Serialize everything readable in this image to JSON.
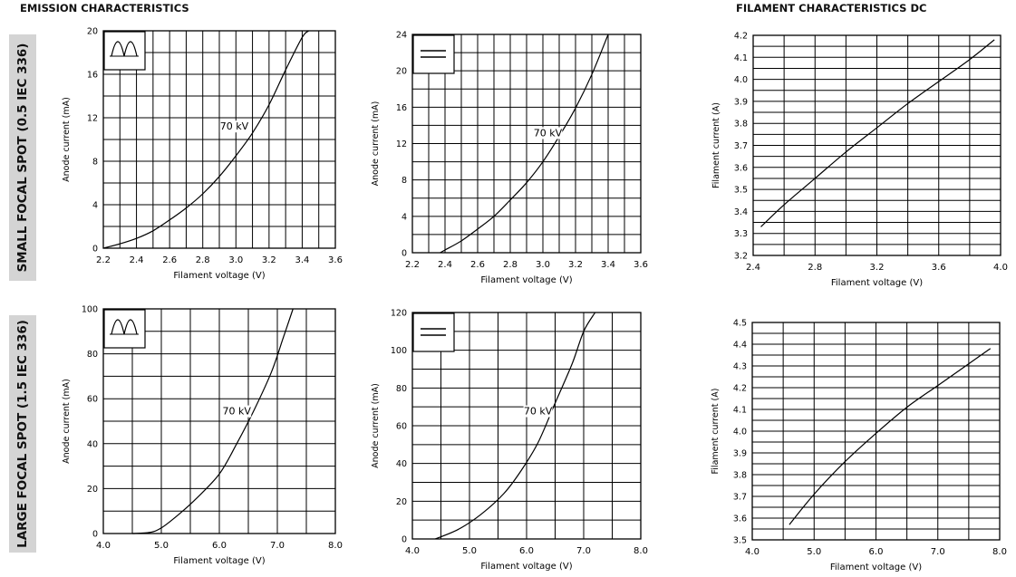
{
  "titles": {
    "emission": "EMISSION CHARACTERISTICS",
    "filament": "FILAMENT CHARACTERISTICS DC"
  },
  "side_labels": {
    "small": "SMALL FOCAL SPOT (0.5 IEC 336)",
    "large": "LARGE FOCAL SPOT (1.5 IEC 336)"
  },
  "icons": {
    "ac": "ac-full-wave-icon",
    "dc": "dc-direct-current-icon"
  },
  "colors": {
    "line": "#000000",
    "grid": "#000000",
    "side_band": "#d4d4d4"
  },
  "chart_data": [
    {
      "type": "line",
      "xlabel": "Filament voltage (V)",
      "ylabel": "Anode current (mA)",
      "xlim": [
        2.2,
        3.6
      ],
      "ylim": [
        0,
        20
      ],
      "xticks": [
        "2.2",
        "2.4",
        "2.6",
        "2.8",
        "3.0",
        "3.2",
        "3.4",
        "3.6"
      ],
      "yticks": [
        "0",
        "4",
        "8",
        "12",
        "16",
        "20"
      ],
      "grid": {
        "x": 14,
        "y": 10
      },
      "icon": "ac",
      "annotation": {
        "text": "70 kV",
        "x": 2.99,
        "y": 10.9
      },
      "series": [
        {
          "x": [
            2.2,
            2.3,
            2.4,
            2.5,
            2.6,
            2.7,
            2.8,
            2.9,
            3.0,
            3.1,
            3.2,
            3.3,
            3.4,
            3.44
          ],
          "y": [
            0.0,
            0.4,
            0.9,
            1.6,
            2.6,
            3.7,
            5.0,
            6.6,
            8.5,
            10.6,
            13.2,
            16.4,
            19.4,
            20.0
          ]
        }
      ]
    },
    {
      "type": "line",
      "xlabel": "Filament voltage (V)",
      "ylabel": "Anode current (mA)",
      "xlim": [
        2.2,
        3.6
      ],
      "ylim": [
        0,
        24
      ],
      "xticks": [
        "2.2",
        "2.4",
        "2.6",
        "2.8",
        "3.0",
        "3.2",
        "3.4",
        "3.6"
      ],
      "yticks": [
        "0",
        "4",
        "8",
        "12",
        "16",
        "20",
        "24"
      ],
      "grid": {
        "x": 14,
        "y": 12
      },
      "icon": "dc",
      "annotation": {
        "text": "70 kV",
        "x": 3.03,
        "y": 12.8
      },
      "series": [
        {
          "x": [
            2.37,
            2.4,
            2.5,
            2.6,
            2.7,
            2.8,
            2.9,
            3.0,
            3.1,
            3.2,
            3.3,
            3.4
          ],
          "y": [
            0.0,
            0.3,
            1.3,
            2.6,
            4.0,
            5.8,
            7.7,
            10.0,
            12.8,
            15.9,
            19.6,
            24.0
          ]
        }
      ]
    },
    {
      "type": "line",
      "xlabel": "Filament voltage (V)",
      "ylabel": "Filament current (A)",
      "xlim": [
        2.4,
        4.0
      ],
      "ylim": [
        3.2,
        4.2
      ],
      "xticks": [
        "2.4",
        "2.8",
        "3.2",
        "3.6",
        "4.0"
      ],
      "yticks": [
        "3.2",
        "3.3",
        "3.4",
        "3.5",
        "3.6",
        "3.7",
        "3.8",
        "3.9",
        "4.0",
        "4.1",
        "4.2"
      ],
      "grid": {
        "x": 8,
        "y": 20
      },
      "series": [
        {
          "x": [
            2.45,
            2.6,
            2.8,
            3.0,
            3.2,
            3.4,
            3.6,
            3.8,
            3.96
          ],
          "y": [
            3.33,
            3.43,
            3.55,
            3.67,
            3.78,
            3.89,
            3.99,
            4.09,
            4.18
          ]
        }
      ]
    },
    {
      "type": "line",
      "xlabel": "Filament voltage (V)",
      "ylabel": "Anode current (mA)",
      "xlim": [
        4.0,
        8.0
      ],
      "ylim": [
        0,
        100
      ],
      "xticks": [
        "4.0",
        "5.0",
        "6.0",
        "7.0",
        "8.0"
      ],
      "yticks": [
        "0",
        "20",
        "40",
        "60",
        "80",
        "100"
      ],
      "grid": {
        "x": 8,
        "y": 10
      },
      "icon": "ac",
      "annotation": {
        "text": "70 kV",
        "x": 6.3,
        "y": 53
      },
      "series": [
        {
          "x": [
            4.5,
            4.8,
            5.0,
            5.3,
            5.6,
            6.0,
            6.3,
            6.6,
            6.9,
            7.1,
            7.27
          ],
          "y": [
            0,
            0.5,
            2.5,
            8.5,
            15.5,
            26.5,
            40,
            55,
            72,
            87,
            100
          ]
        }
      ]
    },
    {
      "type": "line",
      "xlabel": "Filament voltage (V)",
      "ylabel": "Anode current (mA)",
      "xlim": [
        4.0,
        8.0
      ],
      "ylim": [
        0,
        120
      ],
      "xticks": [
        "4.0",
        "5.0",
        "6.0",
        "7.0",
        "8.0"
      ],
      "yticks": [
        "0",
        "20",
        "40",
        "60",
        "80",
        "100",
        "120"
      ],
      "grid": {
        "x": 8,
        "y": 12
      },
      "icon": "dc",
      "annotation": {
        "text": "70 kV",
        "x": 6.2,
        "y": 66
      },
      "series": [
        {
          "x": [
            4.4,
            4.8,
            5.2,
            5.6,
            5.9,
            6.2,
            6.5,
            6.8,
            7.0,
            7.2
          ],
          "y": [
            0,
            5,
            13,
            24,
            36,
            51,
            72,
            93,
            110,
            120
          ]
        }
      ]
    },
    {
      "type": "line",
      "xlabel": "Filament voltage (V)",
      "ylabel": "Filament current (A)",
      "xlim": [
        4.0,
        8.0
      ],
      "ylim": [
        3.5,
        4.5
      ],
      "xticks": [
        "4.0",
        "5.0",
        "6.0",
        "7.0",
        "8.0"
      ],
      "yticks": [
        "3.5",
        "3.6",
        "3.7",
        "3.8",
        "3.9",
        "4.0",
        "4.1",
        "4.2",
        "4.3",
        "4.4",
        "4.5"
      ],
      "grid": {
        "x": 8,
        "y": 20
      },
      "series": [
        {
          "x": [
            4.6,
            5.0,
            5.5,
            6.0,
            6.5,
            7.0,
            7.5,
            7.85
          ],
          "y": [
            3.57,
            3.71,
            3.86,
            3.99,
            4.11,
            4.21,
            4.31,
            4.38
          ]
        }
      ]
    }
  ]
}
